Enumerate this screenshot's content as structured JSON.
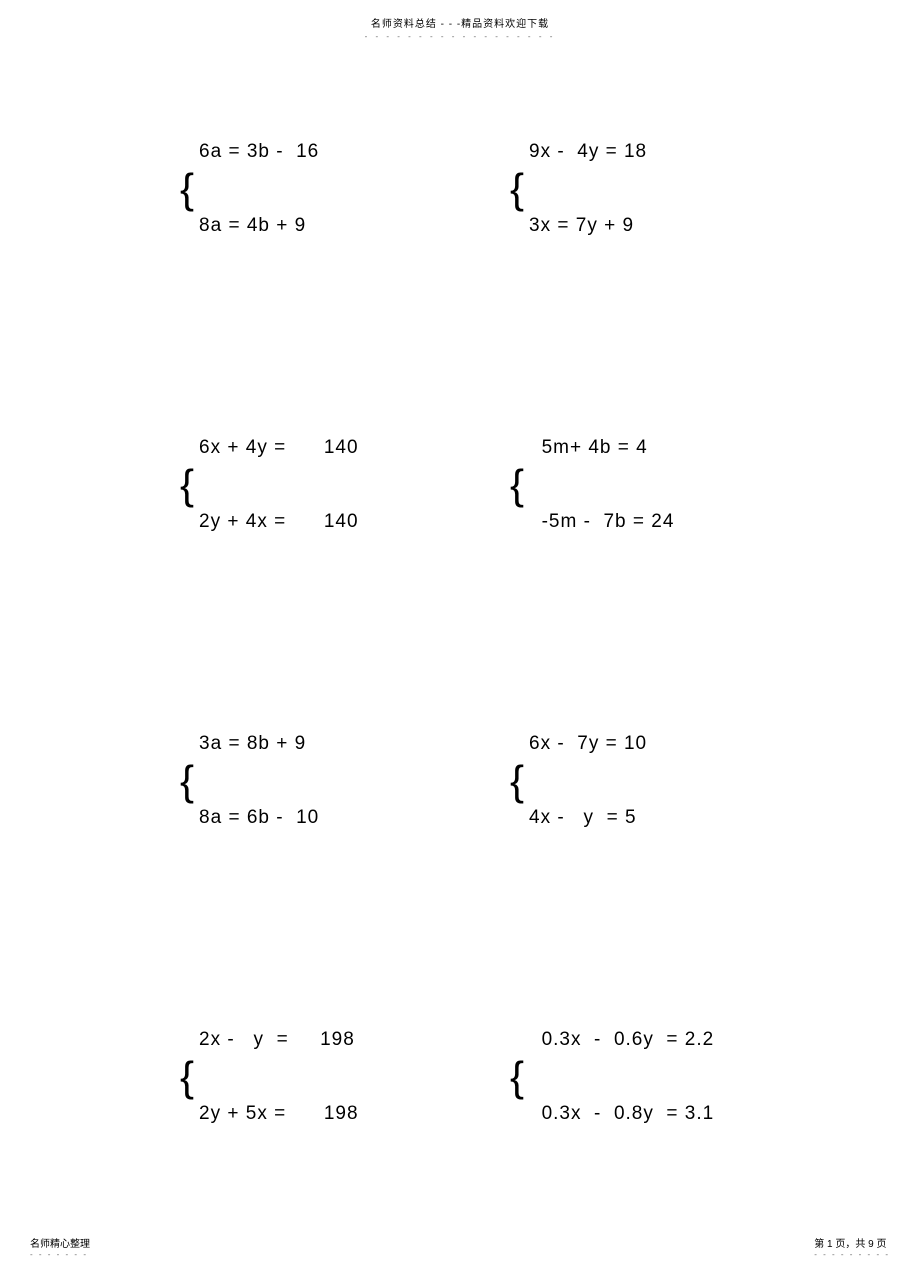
{
  "header": {
    "title": "名师资料总结 - - -精品资料欢迎下载",
    "dots": "- - - - - - - - - - - - - - - - - -"
  },
  "rows": [
    {
      "left": {
        "eq1": "6a = 3b -  16",
        "eq2": "8a = 4b + 9"
      },
      "right": {
        "eq1": "9x -  4y = 18",
        "eq2": "3x = 7y + 9"
      }
    },
    {
      "left": {
        "eq1": "6x + 4y =      140",
        "eq2": "2y + 4x =      140"
      },
      "right": {
        "eq1": "  5m+ 4b = 4",
        "eq2": "  -5m -  7b = 24"
      }
    },
    {
      "left": {
        "eq1": "3a = 8b + 9",
        "eq2": "8a = 6b -  10"
      },
      "right": {
        "eq1": "6x -  7y = 10",
        "eq2": "4x -   y  = 5"
      }
    },
    {
      "left": {
        "eq1": "2x -   y  =     198",
        "eq2": "2y + 5x =      198"
      },
      "right": {
        "eq1": "  0.3x  -  0.6y  = 2.2",
        "eq2": "  0.3x  -  0.8y  = 3.1"
      }
    }
  ],
  "footer": {
    "left": "名师精心整理",
    "left_dots": "- - - - - - -",
    "right": "第 1 页，共 9 页",
    "right_dots": "- - - - - - - - -"
  }
}
